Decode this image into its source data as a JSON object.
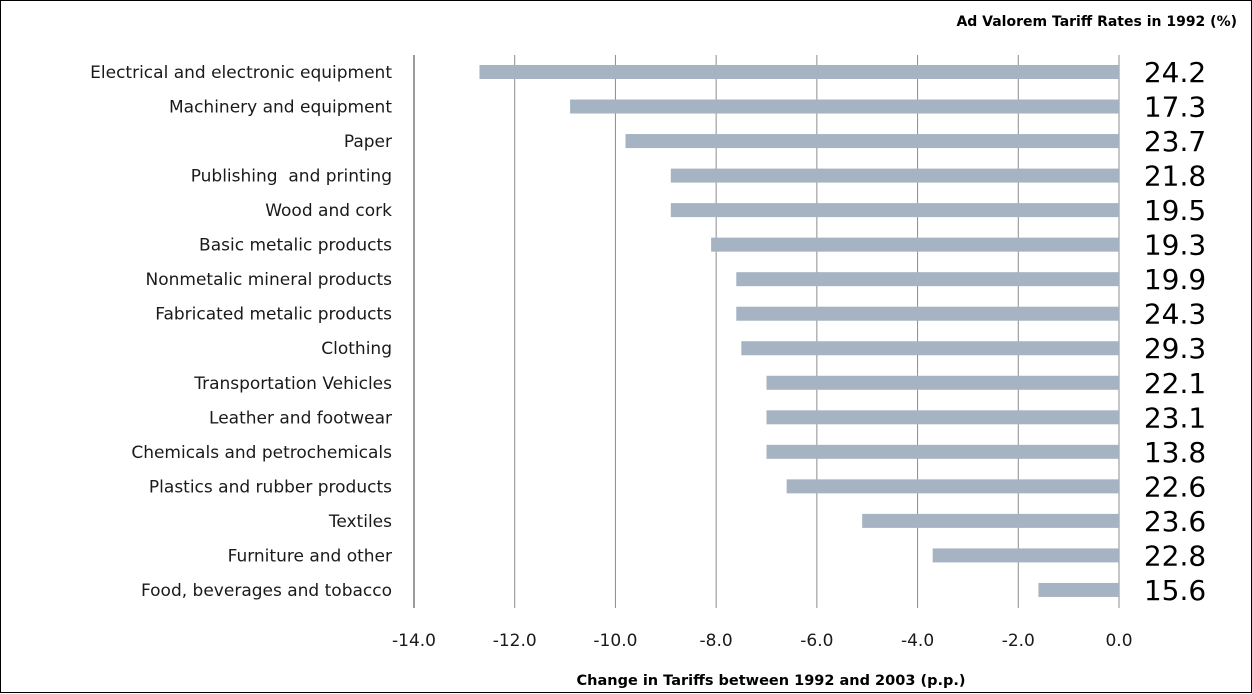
{
  "chart_data": {
    "type": "bar",
    "orientation": "horizontal",
    "rates_title": "Ad Valorem Tariff Rates in 1992 (%)",
    "xlabel": "Change in Tariffs between 1992 and 2003 (p.p.)",
    "xlim": [
      -14.0,
      0.0
    ],
    "x_ticks": [
      "-14.0",
      "-12.0",
      "-10.0",
      "-8.0",
      "-6.0",
      "-4.0",
      "-2.0",
      "0.0"
    ],
    "x_tick_values": [
      -14,
      -12,
      -10,
      -8,
      -6,
      -4,
      -2,
      0
    ],
    "grid": "vertical",
    "categories": [
      "Electrical and electronic equipment",
      "Machinery and equipment",
      "Paper",
      "Publishing  and printing",
      "Wood and cork",
      "Basic metalic products",
      "Nonmetalic mineral products",
      "Fabricated metalic products",
      "Clothing",
      "Transportation Vehicles",
      "Leather and footwear",
      "Chemicals and petrochemicals",
      "Plastics and rubber products",
      "Textiles",
      "Furniture and other",
      "Food, beverages and tobacco"
    ],
    "values": [
      -12.7,
      -10.9,
      -9.8,
      -8.9,
      -8.9,
      -8.1,
      -7.6,
      -7.6,
      -7.5,
      -7.0,
      -7.0,
      -7.0,
      -6.6,
      -5.1,
      -3.7,
      -1.6
    ],
    "rates_1992": [
      "24.2",
      "17.3",
      "23.7",
      "21.8",
      "19.5",
      "19.3",
      "19.9",
      "24.3",
      "29.3",
      "22.1",
      "23.1",
      "13.8",
      "22.6",
      "23.6",
      "22.8",
      "15.6"
    ],
    "bar_color": "#a5b3c2",
    "grid_color": "#8c8c8c"
  }
}
